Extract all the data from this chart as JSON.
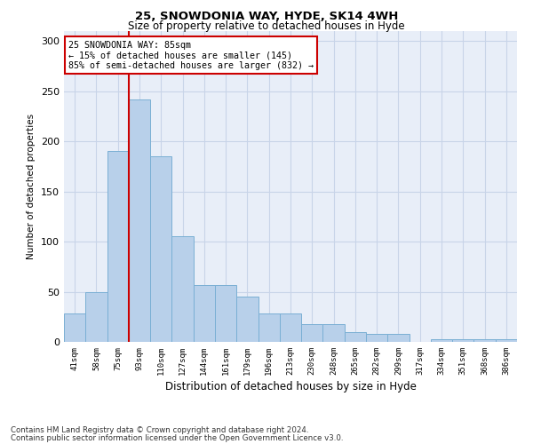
{
  "title1": "25, SNOWDONIA WAY, HYDE, SK14 4WH",
  "title2": "Size of property relative to detached houses in Hyde",
  "xlabel": "Distribution of detached houses by size in Hyde",
  "ylabel": "Number of detached properties",
  "categories": [
    "41sqm",
    "58sqm",
    "75sqm",
    "93sqm",
    "110sqm",
    "127sqm",
    "144sqm",
    "161sqm",
    "179sqm",
    "196sqm",
    "213sqm",
    "230sqm",
    "248sqm",
    "265sqm",
    "282sqm",
    "299sqm",
    "317sqm",
    "334sqm",
    "351sqm",
    "368sqm",
    "386sqm"
  ],
  "values": [
    28,
    50,
    190,
    242,
    185,
    105,
    57,
    57,
    45,
    28,
    28,
    18,
    18,
    10,
    8,
    8,
    0,
    3,
    3,
    3,
    3
  ],
  "bar_color": "#b8d0ea",
  "bar_edge_color": "#7aafd4",
  "grid_color": "#c8d4e8",
  "background_color": "#e8eef8",
  "vline_color": "#cc0000",
  "annotation_text": "25 SNOWDONIA WAY: 85sqm\n← 15% of detached houses are smaller (145)\n85% of semi-detached houses are larger (832) →",
  "annotation_box_color": "#ffffff",
  "annotation_box_edge": "#cc0000",
  "footnote1": "Contains HM Land Registry data © Crown copyright and database right 2024.",
  "footnote2": "Contains public sector information licensed under the Open Government Licence v3.0.",
  "ylim": [
    0,
    310
  ],
  "yticks": [
    0,
    50,
    100,
    150,
    200,
    250,
    300
  ]
}
